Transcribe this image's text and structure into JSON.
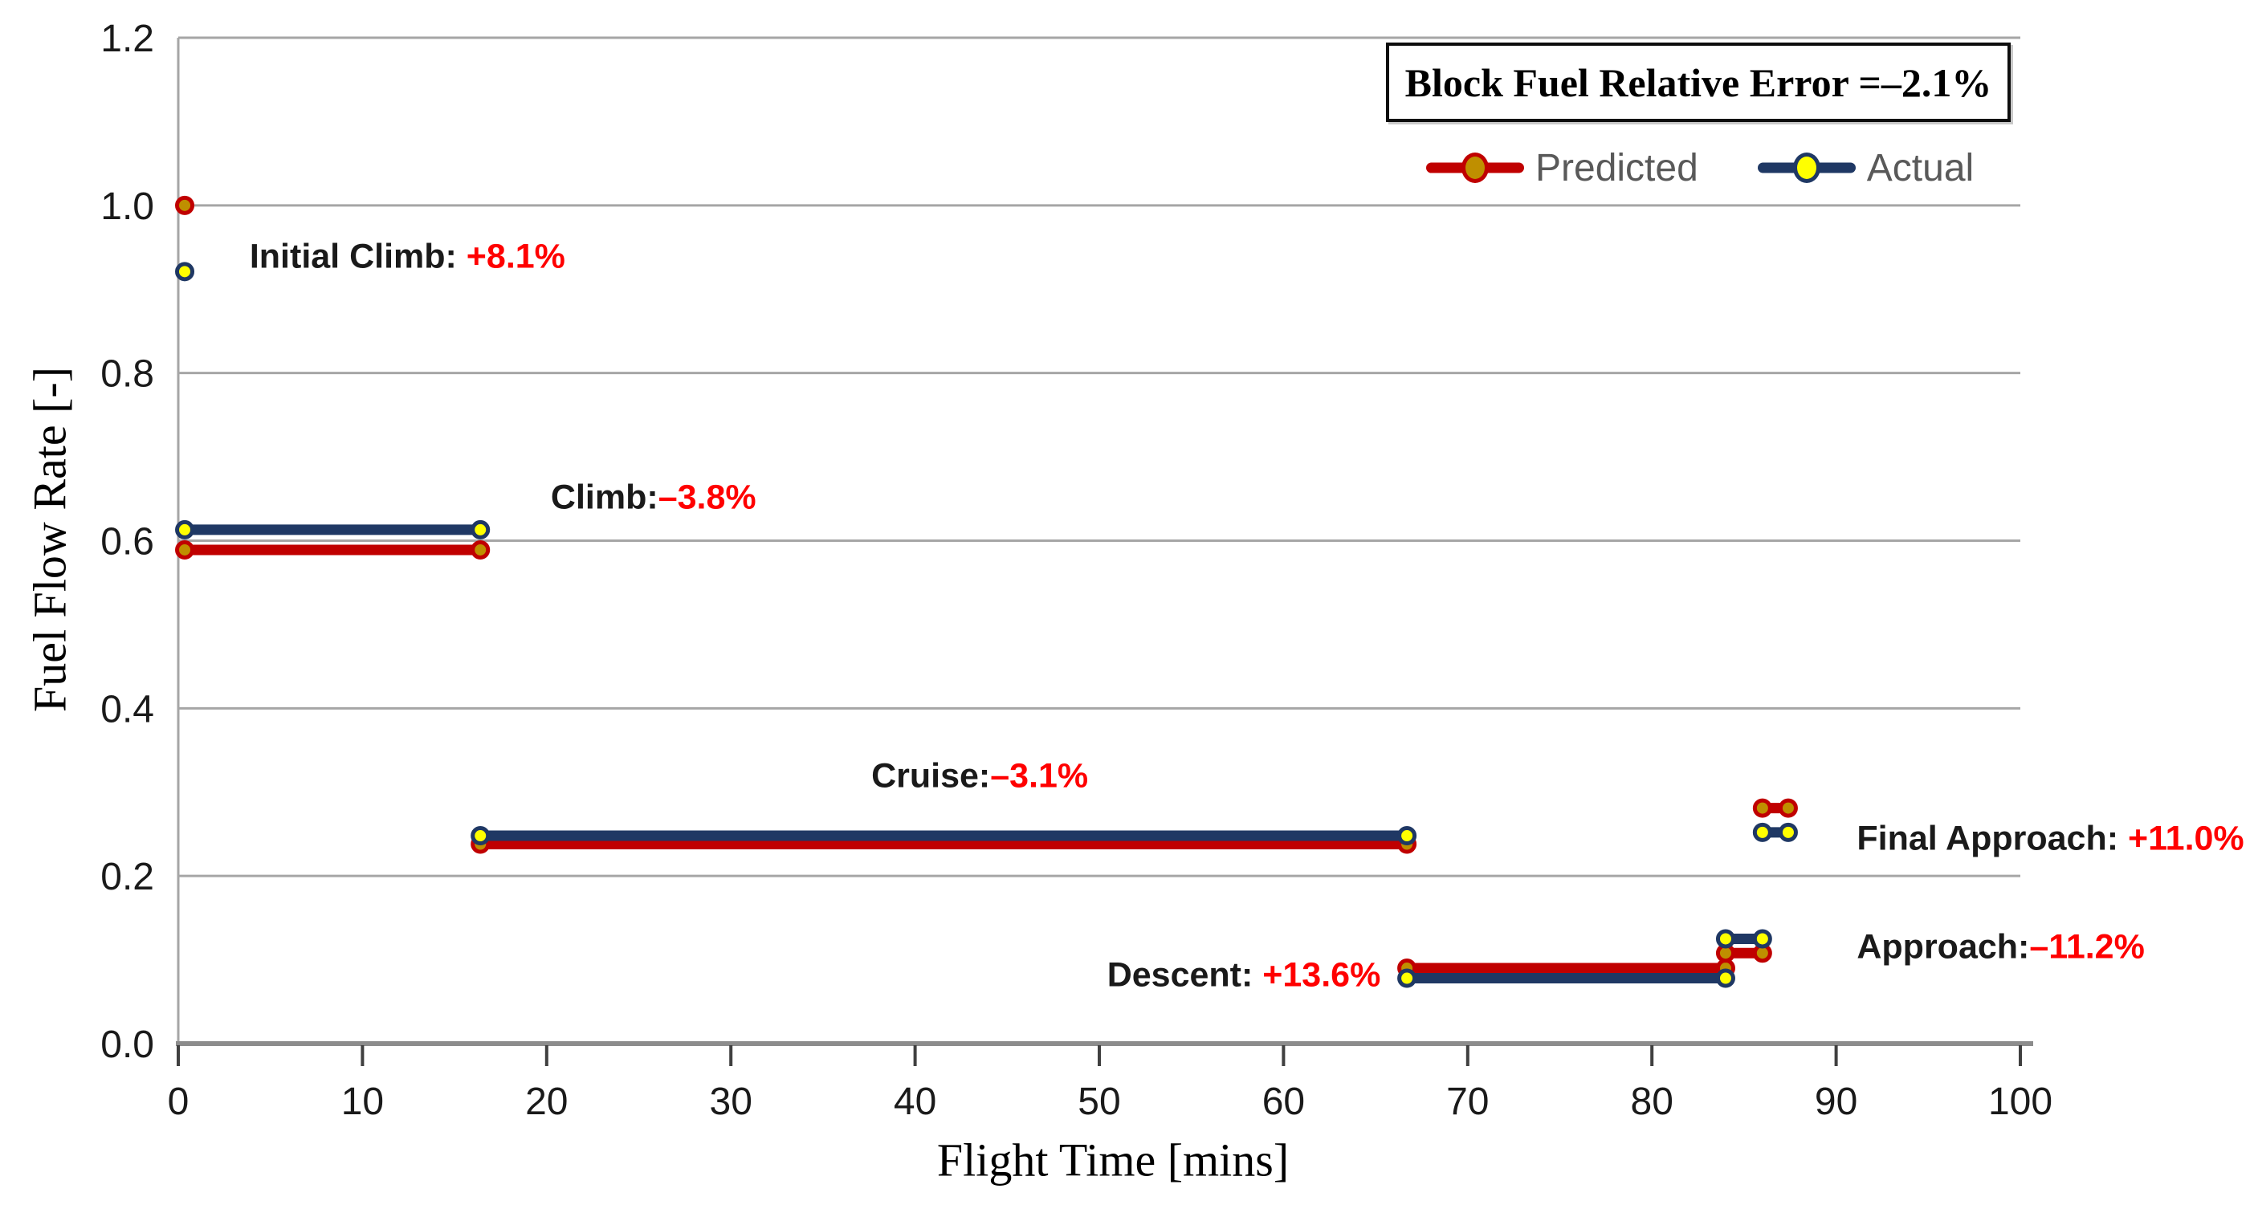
{
  "chart_data": {
    "type": "line",
    "title": "",
    "xlabel": "Flight Time [mins]",
    "ylabel": "Fuel Flow Rate [-]",
    "xlim": [
      0,
      100
    ],
    "ylim": [
      0,
      1.2
    ],
    "xticks": [
      "0",
      "10",
      "20",
      "30",
      "40",
      "50",
      "60",
      "70",
      "80",
      "90",
      "100"
    ],
    "yticks": [
      "0.0",
      "0.2",
      "0.4",
      "0.6",
      "0.8",
      "1.0",
      "1.2"
    ],
    "grid": "horizontal gridlines on",
    "legend_position": "top-right",
    "legend": {
      "title": "Block Fuel Relative Error =–2.1%",
      "entries": [
        {
          "label": "Predicted",
          "line_color": "#C00000",
          "marker_fill": "#BF8F00",
          "marker_stroke": "#C00000"
        },
        {
          "label": "Actual",
          "line_color": "#1F3864",
          "marker_fill": "#FFFF00",
          "marker_stroke": "#1F3864"
        }
      ]
    },
    "series": [
      {
        "name": "Predicted",
        "line_color": "#C00000",
        "marker_fill": "#BF8F00",
        "marker_stroke": "#C00000",
        "segments": [
          {
            "phase": "Initial Climb",
            "x1": 0.35,
            "x2": 0.35,
            "y": 1.0
          },
          {
            "phase": "Climb",
            "x1": 0.35,
            "x2": 16.4,
            "y": 0.589
          },
          {
            "phase": "Cruise",
            "x1": 16.4,
            "x2": 66.7,
            "y": 0.238
          },
          {
            "phase": "Descent",
            "x1": 66.7,
            "x2": 84.0,
            "y": 0.09
          },
          {
            "phase": "Approach",
            "x1": 84.0,
            "x2": 86.0,
            "y": 0.108
          },
          {
            "phase": "Final Approach",
            "x1": 86.0,
            "x2": 87.4,
            "y": 0.281
          }
        ]
      },
      {
        "name": "Actual",
        "line_color": "#1F3864",
        "marker_fill": "#FFFF00",
        "marker_stroke": "#1F3864",
        "segments": [
          {
            "phase": "Initial Climb",
            "x1": 0.35,
            "x2": 0.35,
            "y": 0.921
          },
          {
            "phase": "Climb",
            "x1": 0.35,
            "x2": 16.4,
            "y": 0.613
          },
          {
            "phase": "Cruise",
            "x1": 16.4,
            "x2": 66.7,
            "y": 0.248
          },
          {
            "phase": "Descent",
            "x1": 66.7,
            "x2": 84.0,
            "y": 0.078
          },
          {
            "phase": "Approach",
            "x1": 84.0,
            "x2": 86.0,
            "y": 0.125
          },
          {
            "phase": "Final Approach",
            "x1": 86.0,
            "x2": 87.4,
            "y": 0.252
          }
        ]
      }
    ],
    "annotations": [
      {
        "phase": "Initial Climb:",
        "sep": " ",
        "value": "+8.1%",
        "x": 3.35,
        "y": 0.939
      },
      {
        "phase": "Climb:",
        "sep": "",
        "value": "–3.8%",
        "x": 19.7,
        "y": 0.651
      },
      {
        "phase": "Cruise:",
        "sep": "",
        "value": "–3.1%",
        "x": 37.1,
        "y": 0.319
      },
      {
        "phase": "Descent:",
        "sep": " ",
        "value": "+13.6%",
        "x": 49.9,
        "y": 0.081
      },
      {
        "phase": "Final Approach:",
        "sep": " ",
        "value": "+11.0%",
        "x": 90.6,
        "y": 0.244
      },
      {
        "phase": "Approach:",
        "sep": "",
        "value": "–11.2%",
        "x": 90.6,
        "y": 0.115
      }
    ],
    "colors": {
      "annotation_value": "#FF0000",
      "annotation_text": "#1A1A1A",
      "grid": "#A6A6A6",
      "axis": "#8C8C8C",
      "tick": "#404040",
      "legend_text": "#595959"
    }
  }
}
